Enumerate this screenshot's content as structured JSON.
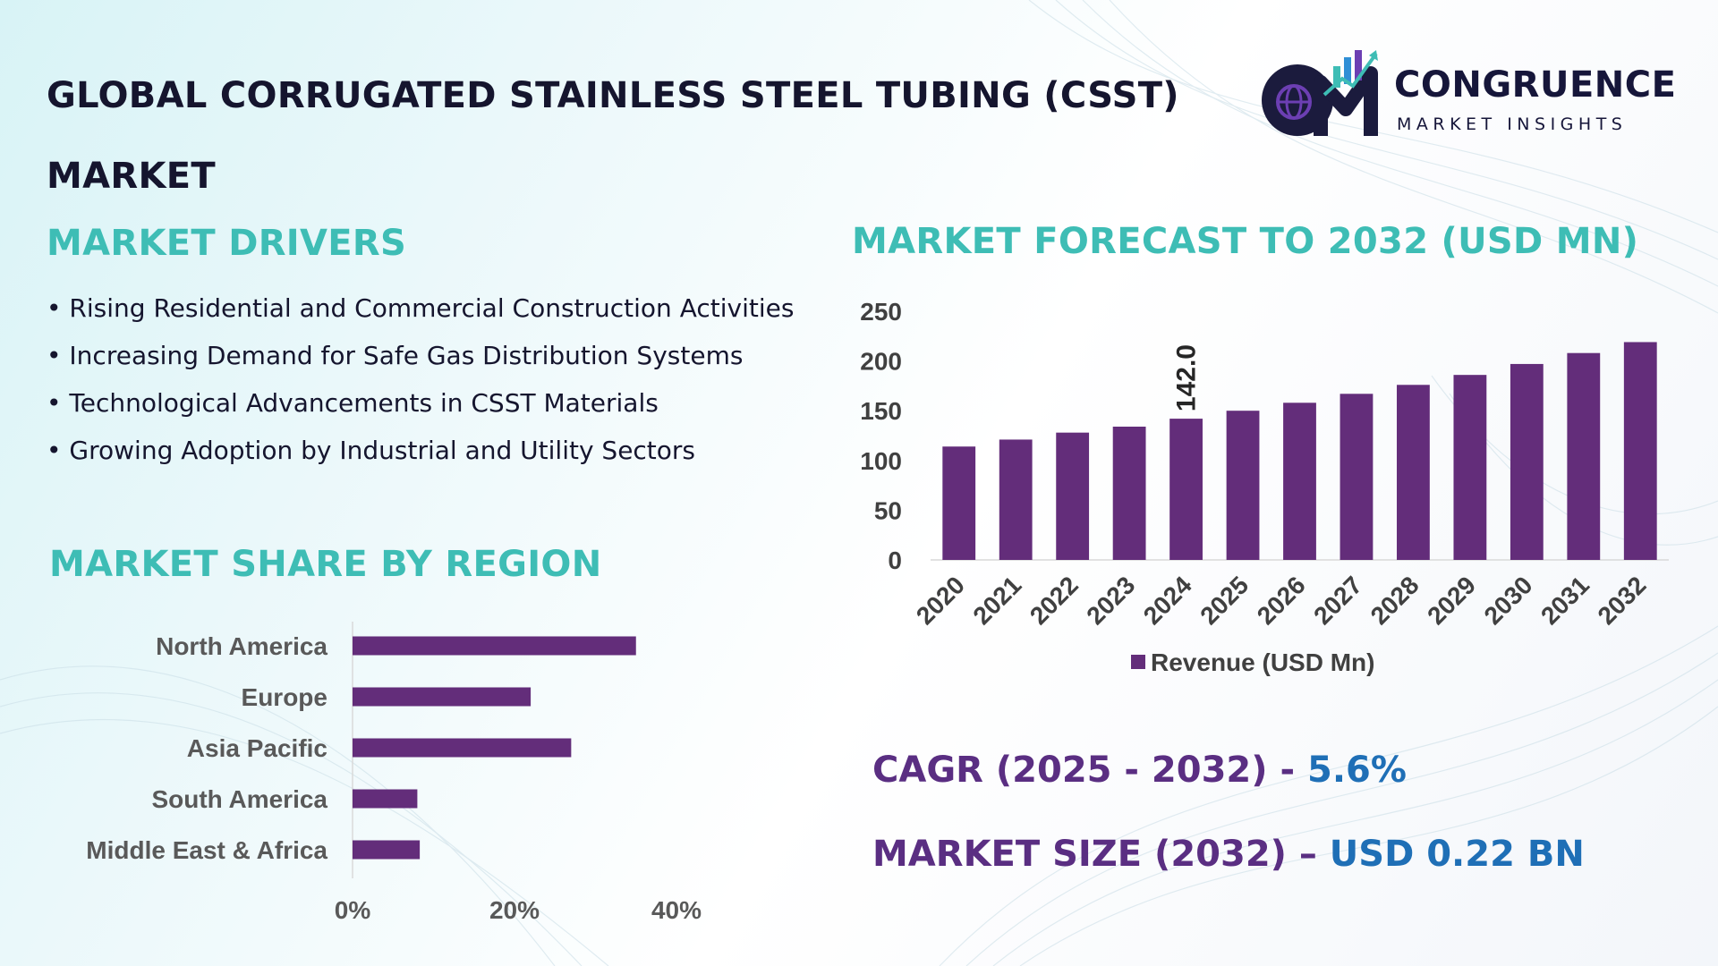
{
  "title": "GLOBAL CORRUGATED STAINLESS STEEL TUBING (CSST) MARKET",
  "logo": {
    "name": "CONGRUENCE",
    "tagline": "MARKET INSIGHTS",
    "icon": "cmi-globe-chart-logo"
  },
  "drivers": {
    "heading": "MARKET DRIVERS",
    "items": [
      "• Rising Residential and Commercial Construction Activities",
      "• Increasing Demand for Safe Gas Distribution Systems",
      "• Technological Advancements in CSST Materials",
      "• Growing Adoption by Industrial and Utility Sectors"
    ]
  },
  "region": {
    "heading": "MARKET SHARE BY REGION"
  },
  "forecast": {
    "heading": "MARKET FORECAST TO 2032 (USD MN)"
  },
  "kpis": {
    "cagr_label": "CAGR (2025 - 2032) -",
    "cagr_value": "5.6%",
    "size_label": "MARKET SIZE (2032) –",
    "size_value": "USD 0.22 BN"
  },
  "colors": {
    "bar": "#632d7a",
    "teal": "#3ebdb5",
    "purple_text": "#5a2e82",
    "blue_text": "#1f6fb6"
  },
  "chart_data": [
    {
      "type": "bar",
      "orientation": "vertical",
      "title": "MARKET FORECAST TO 2032 (USD MN)",
      "categories": [
        "2020",
        "2021",
        "2022",
        "2023",
        "2024",
        "2025",
        "2026",
        "2027",
        "2028",
        "2029",
        "2030",
        "2031",
        "2032"
      ],
      "series": [
        {
          "name": "Revenue (USD Mn)",
          "values": [
            114,
            121,
            128,
            134,
            142,
            150,
            158,
            167,
            176,
            186,
            197,
            208,
            219
          ]
        }
      ],
      "data_labels": [
        {
          "category": "2024",
          "label": "142.0"
        }
      ],
      "ylim": [
        0,
        250
      ],
      "yticks": [
        "0",
        "50",
        "100",
        "150",
        "200",
        "250"
      ],
      "legend": "bottom",
      "grid": false
    },
    {
      "type": "bar",
      "orientation": "horizontal",
      "title": "MARKET SHARE BY REGION",
      "categories": [
        "North America",
        "Europe",
        "Asia Pacific",
        "South America",
        "Middle East & Africa"
      ],
      "values": [
        35,
        22,
        27,
        8,
        8.3
      ],
      "unit": "%",
      "xlim": [
        0,
        40
      ],
      "xticks": [
        "0%",
        "20%",
        "40%"
      ],
      "grid": false
    }
  ]
}
